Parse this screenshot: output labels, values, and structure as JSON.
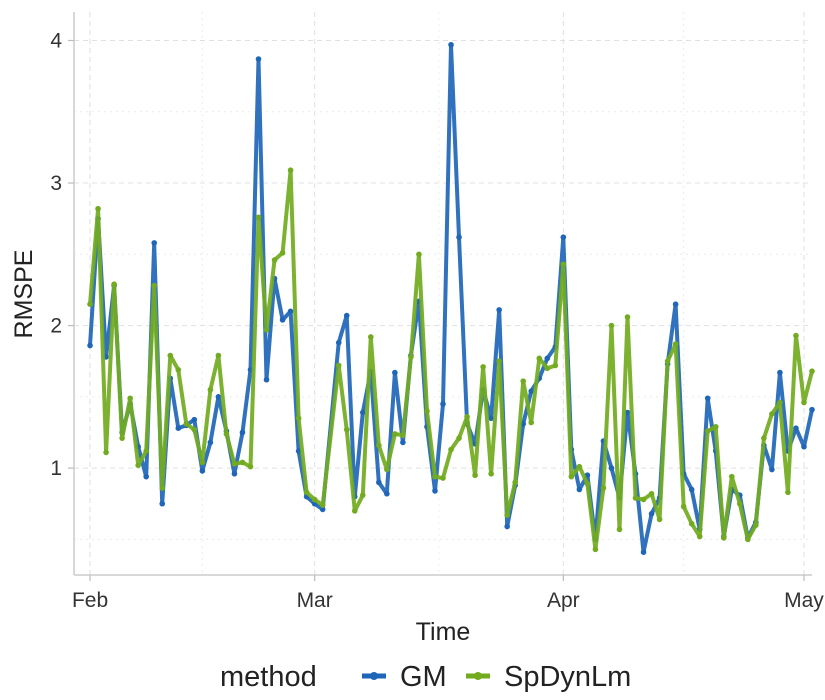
{
  "chart_data": {
    "type": "line",
    "title": "",
    "xlabel": "Time",
    "ylabel": "RMSPE",
    "x_ticks": [
      "Feb",
      "Mar",
      "Apr",
      "May"
    ],
    "y_ticks": [
      "1",
      "2",
      "3",
      "4"
    ],
    "x_range_days": [
      -2,
      90
    ],
    "ylim": [
      0.25,
      4.2
    ],
    "grid": true,
    "legend": {
      "title": "method",
      "placement": "bottom"
    },
    "series": [
      {
        "name": "GM",
        "color": "#1f66b9",
        "x": [
          0,
          1,
          2,
          3,
          4,
          5,
          6,
          7,
          8,
          9,
          10,
          11,
          12,
          13,
          14,
          15,
          16,
          17,
          18,
          19,
          20,
          21,
          22,
          23,
          24,
          25,
          26,
          27,
          28,
          29,
          31,
          32,
          33,
          34,
          35,
          36,
          37,
          38,
          39,
          40,
          41,
          42,
          43,
          44,
          45,
          46,
          47,
          48,
          49,
          50,
          51,
          52,
          53,
          54,
          55,
          56,
          57,
          58,
          59,
          60,
          61,
          62,
          63,
          64,
          65,
          66,
          67,
          68,
          69,
          70,
          71,
          72,
          73,
          74,
          75,
          76,
          77,
          78,
          79,
          80,
          81,
          82,
          83,
          84,
          85,
          86,
          87,
          88,
          89,
          90
        ],
        "y": [
          1.86,
          2.75,
          1.78,
          2.28,
          1.25,
          1.45,
          1.15,
          0.94,
          2.58,
          0.75,
          1.63,
          1.28,
          1.3,
          1.34,
          0.98,
          1.18,
          1.5,
          1.26,
          0.96,
          1.25,
          1.69,
          3.87,
          1.62,
          2.33,
          2.04,
          2.1,
          1.12,
          0.8,
          0.75,
          0.71,
          1.88,
          2.07,
          0.8,
          1.39,
          1.68,
          0.9,
          0.82,
          1.67,
          1.18,
          1.79,
          2.17,
          1.29,
          0.84,
          1.45,
          3.97,
          2.62,
          1.31,
          1.17,
          1.55,
          1.35,
          2.11,
          0.59,
          0.88,
          1.31,
          1.54,
          1.63,
          1.77,
          1.85,
          2.62,
          1.13,
          0.85,
          0.95,
          0.5,
          1.19,
          1.0,
          0.79,
          1.39,
          0.96,
          0.41,
          0.68,
          0.79,
          1.73,
          2.15,
          0.96,
          0.85,
          0.57,
          1.49,
          1.12,
          0.52,
          0.85,
          0.81,
          0.51,
          0.62,
          1.16,
          0.99,
          1.67,
          1.12,
          1.28,
          1.15,
          1.41
        ]
      },
      {
        "name": "SpDynLm",
        "color": "#72ab1f",
        "x": [
          0,
          1,
          2,
          3,
          4,
          5,
          6,
          7,
          8,
          9,
          10,
          11,
          12,
          13,
          14,
          15,
          16,
          17,
          18,
          19,
          20,
          21,
          22,
          23,
          24,
          25,
          26,
          27,
          28,
          29,
          31,
          32,
          33,
          34,
          35,
          36,
          37,
          38,
          39,
          40,
          41,
          42,
          43,
          44,
          45,
          46,
          47,
          48,
          49,
          50,
          51,
          52,
          53,
          54,
          55,
          56,
          57,
          58,
          59,
          60,
          61,
          62,
          63,
          64,
          65,
          66,
          67,
          68,
          69,
          70,
          71,
          72,
          73,
          74,
          75,
          76,
          77,
          78,
          79,
          80,
          81,
          82,
          83,
          84,
          85,
          86,
          87,
          88,
          89,
          90
        ],
        "y": [
          2.15,
          2.82,
          1.11,
          2.29,
          1.21,
          1.49,
          1.02,
          1.12,
          2.28,
          0.86,
          1.79,
          1.69,
          1.31,
          1.27,
          1.04,
          1.55,
          1.79,
          1.24,
          1.03,
          1.04,
          1.01,
          2.76,
          1.97,
          2.46,
          2.51,
          3.09,
          1.35,
          0.83,
          0.78,
          0.74,
          1.72,
          1.27,
          0.7,
          0.81,
          1.92,
          1.16,
          0.99,
          1.24,
          1.23,
          1.78,
          2.5,
          1.4,
          0.94,
          0.93,
          1.13,
          1.21,
          1.36,
          0.95,
          1.71,
          0.96,
          1.75,
          0.67,
          0.9,
          1.61,
          1.32,
          1.77,
          1.7,
          1.72,
          2.43,
          0.94,
          1.01,
          0.89,
          0.43,
          0.86,
          2.0,
          0.57,
          2.06,
          0.79,
          0.78,
          0.82,
          0.64,
          1.75,
          1.87,
          0.73,
          0.61,
          0.52,
          1.26,
          1.29,
          0.51,
          0.94,
          0.75,
          0.5,
          0.6,
          1.21,
          1.38,
          1.46,
          0.83,
          1.93,
          1.46,
          1.68
        ]
      }
    ]
  }
}
